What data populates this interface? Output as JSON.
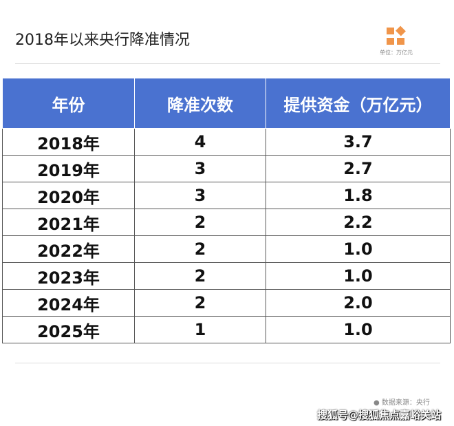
{
  "title": "2018年以来央行降准情况",
  "unit": "单位：万亿元",
  "headers": [
    "年份",
    "降准次数",
    "提供资金（万亿元）"
  ],
  "rows": [
    [
      "2018年",
      "4",
      "3.7"
    ],
    [
      "2019年",
      "3",
      "2.7"
    ],
    [
      "2020年",
      "3",
      "1.8"
    ],
    [
      "2021年",
      "2",
      "2.2"
    ],
    [
      "2022年",
      "2",
      "1.0"
    ],
    [
      "2023年",
      "2",
      "1.0"
    ],
    [
      "2024年",
      "2",
      "2.0"
    ],
    [
      "2025年",
      "1",
      "1.0"
    ]
  ],
  "source": "● 数据来源：央行",
  "watermark": "搜狐号@搜狐焦点嘉峪关站",
  "colors": {
    "header": "#4a72d0",
    "logo": "#f0954a"
  }
}
